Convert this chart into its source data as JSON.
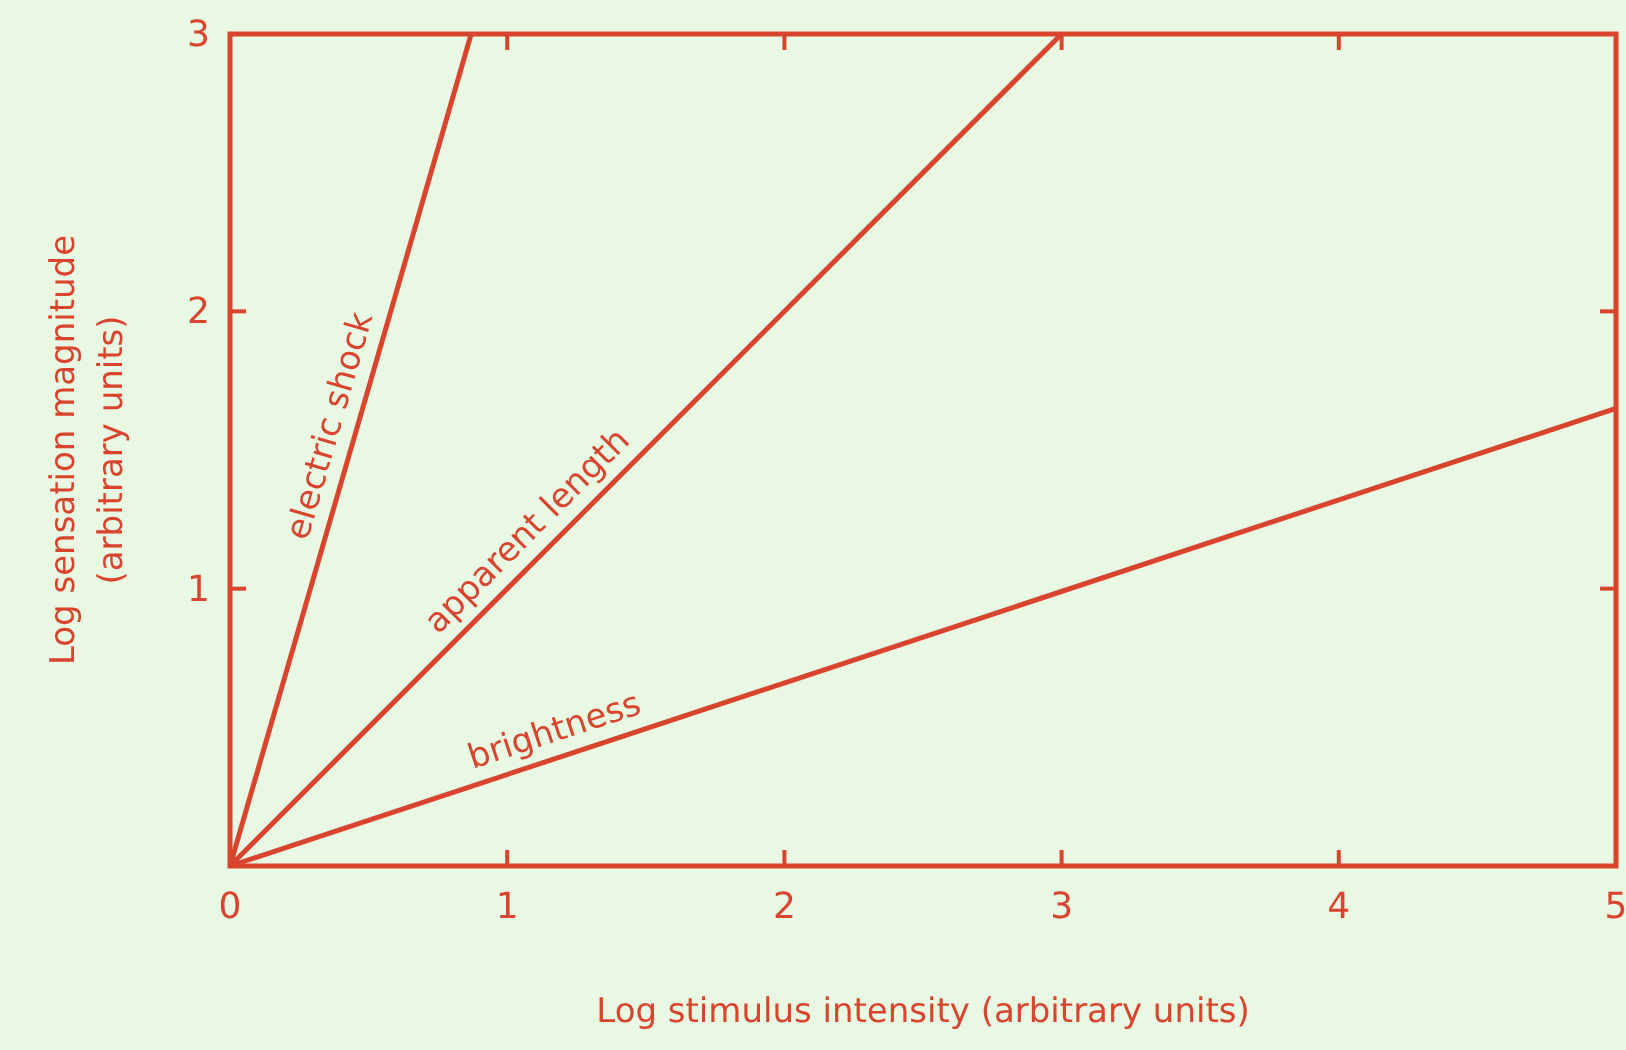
{
  "chart_data": {
    "type": "line",
    "xlabel": "Log stimulus intensity (arbitrary units)",
    "ylabel": "Log sensation magnitude\n(arbitrary units)",
    "xlim": [
      0,
      5
    ],
    "ylim": [
      0,
      3
    ],
    "xticks": [
      0,
      1,
      2,
      3,
      4,
      5
    ],
    "yticks": [
      1,
      2,
      3
    ],
    "legend": false,
    "grid": false,
    "marker": "none",
    "line_style": "solid",
    "series": [
      {
        "name": "electric shock",
        "color": "#d9442e",
        "x": [
          0,
          0.87
        ],
        "values": [
          0,
          3
        ]
      },
      {
        "name": "apparent length",
        "color": "#d9442e",
        "x": [
          0,
          3
        ],
        "values": [
          0,
          3
        ]
      },
      {
        "name": "brightness",
        "color": "#d9442e",
        "x": [
          0,
          5
        ],
        "values": [
          0,
          1.65
        ]
      }
    ]
  }
}
